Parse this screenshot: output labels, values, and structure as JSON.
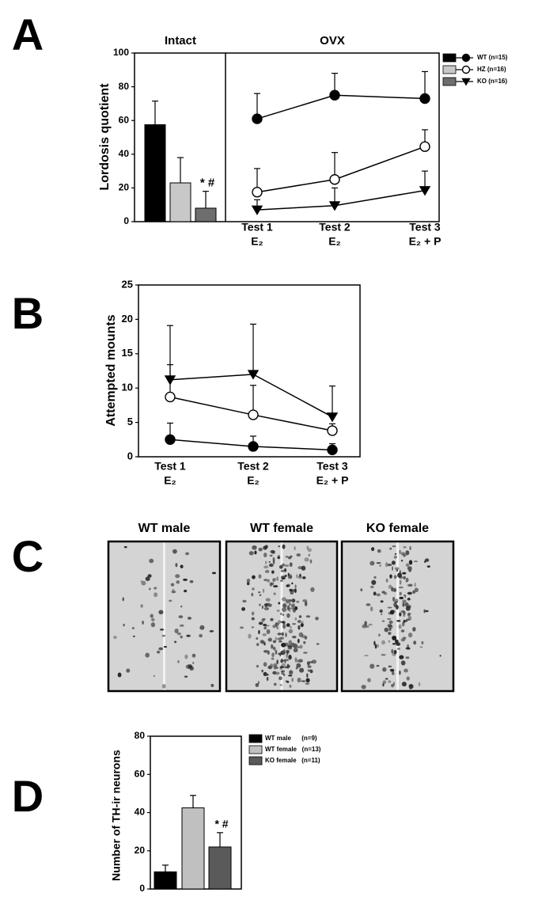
{
  "chart_data": [
    {
      "type": "bar",
      "label": "A",
      "title": "Intact",
      "ylabel": "Lordosis quotient",
      "ylim": [
        0,
        100
      ],
      "yticks": [
        0,
        20,
        40,
        60,
        80,
        100
      ],
      "series": [
        {
          "name": "WT (n=15)",
          "color": "#000000",
          "values": [
            57.5
          ],
          "errors": [
            14
          ]
        },
        {
          "name": "HZ (n=16)",
          "color": "#c8c8c8",
          "values": [
            23
          ],
          "errors": [
            15
          ]
        },
        {
          "name": "KO (n=16)",
          "color": "#6e6e6e",
          "values": [
            8
          ],
          "errors": [
            10
          ]
        }
      ],
      "annotation": "* #"
    },
    {
      "type": "line",
      "title": "OVX",
      "ylim": [
        0,
        100
      ],
      "categories": [
        "Test 1",
        "Test 2",
        "Test 3"
      ],
      "sublabels": [
        "E₂",
        "E₂",
        "E₂ + P"
      ],
      "series": [
        {
          "marker": "circle",
          "color": "#000000",
          "values": [
            61,
            75,
            73
          ],
          "errors": [
            15,
            13,
            16
          ]
        },
        {
          "marker": "circle",
          "color": "#ffffff",
          "values": [
            17.5,
            25,
            44.5
          ],
          "errors": [
            14,
            16,
            10
          ]
        },
        {
          "marker": "triangle",
          "color": "#000000",
          "values": [
            7,
            9.5,
            18.5
          ],
          "errors": [
            6,
            10.5,
            11.5
          ]
        }
      ]
    },
    {
      "type": "line",
      "label": "B",
      "ylabel": "Attempted mounts",
      "ylim": [
        0,
        25
      ],
      "yticks": [
        0,
        5,
        10,
        15,
        20,
        25
      ],
      "categories": [
        "Test 1",
        "Test 2",
        "Test 3"
      ],
      "sublabels": [
        "E₂",
        "E₂",
        "E₂ + P"
      ],
      "series": [
        {
          "marker": "circle",
          "color": "#000000",
          "values": [
            2.5,
            1.5,
            1
          ],
          "errors": [
            2.4,
            1.5,
            0.9
          ]
        },
        {
          "marker": "circle",
          "color": "#ffffff",
          "values": [
            8.7,
            6.1,
            3.8
          ],
          "errors": [
            4.7,
            4.3,
            1
          ]
        },
        {
          "marker": "triangle",
          "color": "#000000",
          "values": [
            11.2,
            12,
            5.8
          ],
          "errors": [
            7.9,
            7.3,
            4.5
          ]
        }
      ]
    },
    {
      "type": "image",
      "label": "C",
      "titles": [
        "WT male",
        "WT female",
        "KO female"
      ]
    },
    {
      "type": "bar",
      "label": "D",
      "ylabel": "Number of TH-ir neurons",
      "ylim": [
        0,
        80
      ],
      "yticks": [
        0,
        20,
        40,
        60,
        80
      ],
      "series": [
        {
          "name": "WT male      (n=9)",
          "color": "#000000",
          "values": [
            9
          ],
          "errors": [
            3.5
          ]
        },
        {
          "name": "WT female   (n=13)",
          "color": "#c0c0c0",
          "values": [
            42.5
          ],
          "errors": [
            6.5
          ]
        },
        {
          "name": "KO female   (n=11)",
          "color": "#5a5a5a",
          "values": [
            22
          ],
          "errors": [
            7.5
          ]
        }
      ],
      "annotation": "* #"
    }
  ]
}
